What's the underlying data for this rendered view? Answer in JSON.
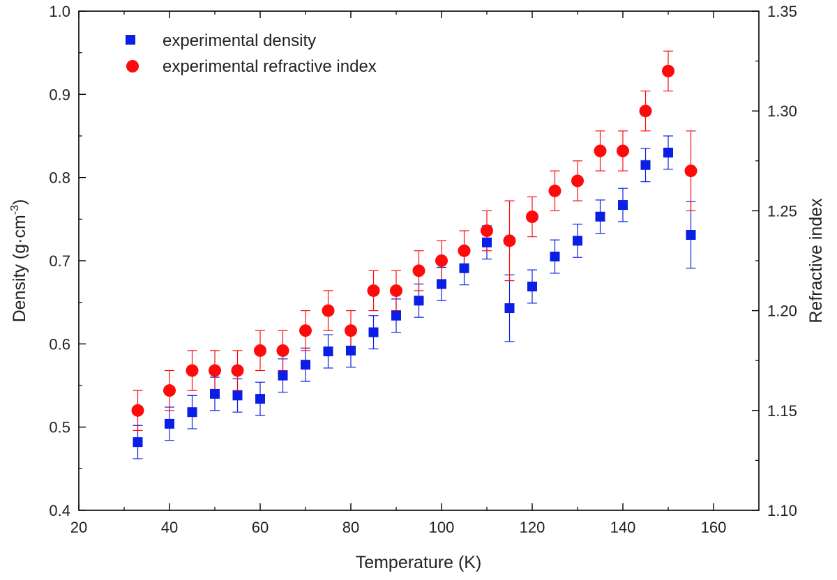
{
  "chart_data": {
    "type": "scatter",
    "title": "",
    "xlabel": "Temperature (K)",
    "ylabel_left": {
      "base": "Density (g·cm",
      "sup": "-3",
      "close": ")"
    },
    "ylabel_right": "Refractive index",
    "xlim": [
      20,
      170
    ],
    "ylim_left": [
      0.4,
      1.0
    ],
    "ylim_right": [
      1.1,
      1.35
    ],
    "x_ticks": [
      "20",
      "40",
      "60",
      "80",
      "100",
      "120",
      "140",
      "160"
    ],
    "y_left_ticks": [
      "0.4",
      "0.5",
      "0.6",
      "0.7",
      "0.8",
      "0.9",
      "1.0"
    ],
    "y_right_ticks": [
      "1.10",
      "1.15",
      "1.20",
      "1.25",
      "1.30",
      "1.35"
    ],
    "legend_position": "top-left",
    "series": [
      {
        "name": "experimental density",
        "axis": "left",
        "marker": "square",
        "color": "#0a1ee6",
        "points": [
          {
            "x": 33,
            "y": 0.482,
            "err": 0.02
          },
          {
            "x": 40,
            "y": 0.504,
            "err": 0.02
          },
          {
            "x": 45,
            "y": 0.518,
            "err": 0.02
          },
          {
            "x": 50,
            "y": 0.54,
            "err": 0.02
          },
          {
            "x": 55,
            "y": 0.538,
            "err": 0.02
          },
          {
            "x": 60,
            "y": 0.534,
            "err": 0.02
          },
          {
            "x": 65,
            "y": 0.562,
            "err": 0.02
          },
          {
            "x": 70,
            "y": 0.575,
            "err": 0.02
          },
          {
            "x": 75,
            "y": 0.591,
            "err": 0.02
          },
          {
            "x": 80,
            "y": 0.592,
            "err": 0.02
          },
          {
            "x": 85,
            "y": 0.614,
            "err": 0.02
          },
          {
            "x": 90,
            "y": 0.634,
            "err": 0.02
          },
          {
            "x": 95,
            "y": 0.652,
            "err": 0.02
          },
          {
            "x": 100,
            "y": 0.672,
            "err": 0.02
          },
          {
            "x": 105,
            "y": 0.691,
            "err": 0.02
          },
          {
            "x": 110,
            "y": 0.722,
            "err": 0.02
          },
          {
            "x": 115,
            "y": 0.643,
            "err": 0.04
          },
          {
            "x": 120,
            "y": 0.669,
            "err": 0.02
          },
          {
            "x": 125,
            "y": 0.705,
            "err": 0.02
          },
          {
            "x": 130,
            "y": 0.724,
            "err": 0.02
          },
          {
            "x": 135,
            "y": 0.753,
            "err": 0.02
          },
          {
            "x": 140,
            "y": 0.767,
            "err": 0.02
          },
          {
            "x": 145,
            "y": 0.815,
            "err": 0.02
          },
          {
            "x": 150,
            "y": 0.83,
            "err": 0.02
          },
          {
            "x": 155,
            "y": 0.731,
            "err": 0.04
          }
        ]
      },
      {
        "name": "experimental refractive index",
        "axis": "right",
        "marker": "circle",
        "color": "#ff0a0a",
        "points": [
          {
            "x": 33,
            "y": 1.15,
            "err": 0.01
          },
          {
            "x": 40,
            "y": 1.16,
            "err": 0.01
          },
          {
            "x": 45,
            "y": 1.17,
            "err": 0.01
          },
          {
            "x": 50,
            "y": 1.17,
            "err": 0.01
          },
          {
            "x": 55,
            "y": 1.17,
            "err": 0.01
          },
          {
            "x": 60,
            "y": 1.18,
            "err": 0.01
          },
          {
            "x": 65,
            "y": 1.18,
            "err": 0.01
          },
          {
            "x": 70,
            "y": 1.19,
            "err": 0.01
          },
          {
            "x": 75,
            "y": 1.2,
            "err": 0.01
          },
          {
            "x": 80,
            "y": 1.19,
            "err": 0.01
          },
          {
            "x": 85,
            "y": 1.21,
            "err": 0.01
          },
          {
            "x": 90,
            "y": 1.21,
            "err": 0.01
          },
          {
            "x": 95,
            "y": 1.22,
            "err": 0.01
          },
          {
            "x": 100,
            "y": 1.225,
            "err": 0.01
          },
          {
            "x": 105,
            "y": 1.23,
            "err": 0.01
          },
          {
            "x": 110,
            "y": 1.24,
            "err": 0.01
          },
          {
            "x": 115,
            "y": 1.235,
            "err": 0.02
          },
          {
            "x": 120,
            "y": 1.247,
            "err": 0.01
          },
          {
            "x": 125,
            "y": 1.26,
            "err": 0.01
          },
          {
            "x": 130,
            "y": 1.265,
            "err": 0.01
          },
          {
            "x": 135,
            "y": 1.28,
            "err": 0.01
          },
          {
            "x": 140,
            "y": 1.28,
            "err": 0.01
          },
          {
            "x": 145,
            "y": 1.3,
            "err": 0.01
          },
          {
            "x": 150,
            "y": 1.32,
            "err": 0.01
          },
          {
            "x": 155,
            "y": 1.27,
            "err": 0.02
          }
        ]
      }
    ]
  }
}
